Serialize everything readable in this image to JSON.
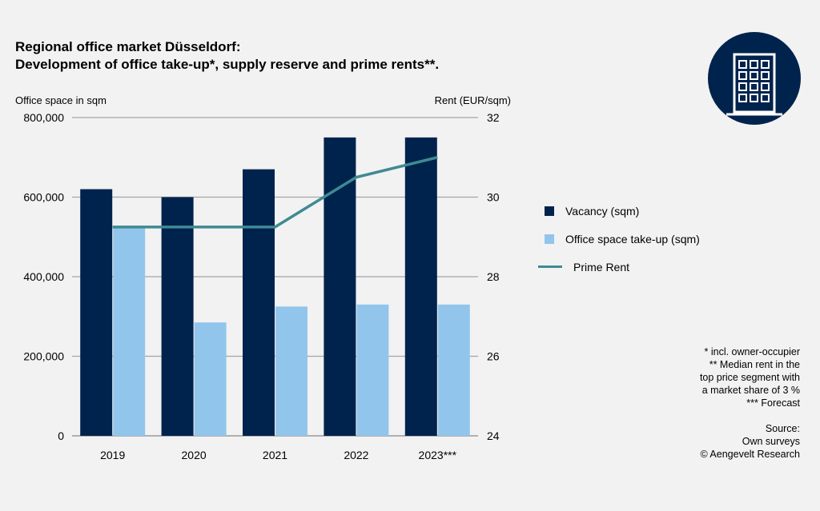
{
  "chart_data": {
    "type": "bar",
    "title": "Regional office market Düsseldorf:",
    "subtitle": "Development of office take-up*, supply reserve and prime rents**.",
    "ylabel": "Office space in sqm",
    "ylabel_right": "Rent (EUR/sqm)",
    "ylim": [
      0,
      800000
    ],
    "ylim_right": [
      24,
      32
    ],
    "yticks": [
      "0",
      "200,000",
      "400,000",
      "600,000",
      "800,000"
    ],
    "yticks_right": [
      "24",
      "26",
      "28",
      "30",
      "32"
    ],
    "grid": true,
    "legend_position": "right",
    "categories": [
      "2019",
      "2020",
      "2021",
      "2022",
      "2023***"
    ],
    "series": [
      {
        "name": "Vacancy (sqm)",
        "type": "bar",
        "axis": "left",
        "color": "#00234d",
        "values": [
          620000,
          600000,
          670000,
          750000,
          750000
        ]
      },
      {
        "name": "Office space take-up (sqm)",
        "type": "bar",
        "axis": "left",
        "color": "#92c5ec",
        "values": [
          525000,
          285000,
          325000,
          330000,
          330000
        ]
      },
      {
        "name": "Prime Rent",
        "type": "line",
        "axis": "right",
        "color": "#3f8a93",
        "values": [
          29.25,
          29.25,
          29.25,
          30.5,
          31.0
        ]
      }
    ]
  },
  "notes": [
    "* incl. owner-occupier",
    "** Median rent in the",
    "top price segment with",
    "a market share of 3 %",
    "*** Forecast",
    "",
    "Source:",
    "Own surveys",
    "© Aengevelt Research"
  ],
  "icon": "office-building-icon"
}
